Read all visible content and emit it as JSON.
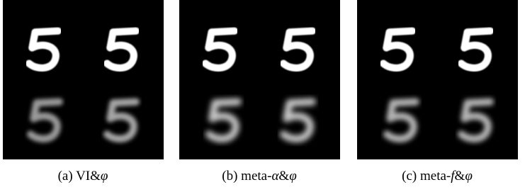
{
  "panels": [
    {
      "caption": [
        "(a) VI&",
        "φ"
      ]
    },
    {
      "caption": [
        "(b) meta-",
        "α",
        "&",
        "φ"
      ]
    },
    {
      "caption": [
        "(c) meta-",
        "f",
        "&",
        "φ"
      ]
    }
  ]
}
